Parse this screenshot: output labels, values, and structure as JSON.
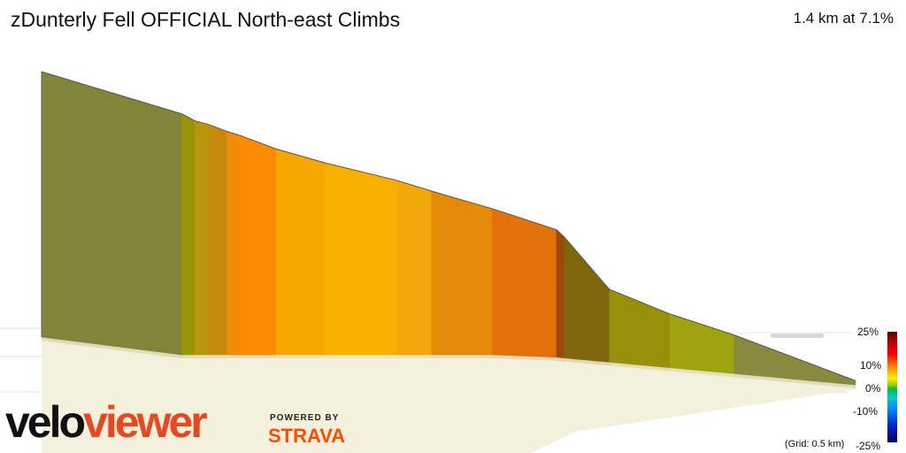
{
  "header": {
    "title": "zDunterly Fell OFFICIAL North-east Climbs",
    "summary": "1.4 km at 7.1%"
  },
  "branding": {
    "logo_part1": "velo",
    "logo_part2": "viewer",
    "powered_by": "POWERED BY",
    "strava": "STRAVA"
  },
  "legend": {
    "grade_labels": [
      "25%",
      "10%",
      "0%",
      "-10%",
      "-25%"
    ],
    "grid_note": "(Grid: 0.5 km)"
  },
  "colors": {
    "accent_orange": "#fc4c02",
    "veloviewer_red": "#e8471f"
  },
  "chart_data": {
    "type": "area",
    "title": "zDunterly Fell OFFICIAL North-east Climbs",
    "xlabel": "",
    "ylabel": "",
    "grid_spacing_km": 0.5,
    "distance_km": 1.4,
    "average_gradient_pct": 7.1,
    "grade_scale_pct": [
      25,
      10,
      0,
      -10,
      -25
    ],
    "segments": [
      {
        "x0": 0.0,
        "x1": 0.37,
        "gradient_pct": 3.5,
        "color": "#808538"
      },
      {
        "x0": 0.37,
        "x1": 0.405,
        "gradient_pct": 5.5,
        "color": "#99940a"
      },
      {
        "x0": 0.405,
        "x1": 0.44,
        "gradient_pct": 6.0,
        "color": "#b8960a"
      },
      {
        "x0": 0.44,
        "x1": 0.49,
        "gradient_pct": 7.0,
        "color": "#c88a0a"
      },
      {
        "x0": 0.49,
        "x1": 0.52,
        "gradient_pct": 8.5,
        "color": "#f08c05"
      },
      {
        "x0": 0.52,
        "x1": 0.62,
        "gradient_pct": 9.0,
        "color": "#fb8c02"
      },
      {
        "x0": 0.62,
        "x1": 0.75,
        "gradient_pct": 8.0,
        "color": "#f7a800"
      },
      {
        "x0": 0.75,
        "x1": 0.94,
        "gradient_pct": 7.5,
        "color": "#f6b000"
      },
      {
        "x0": 0.94,
        "x1": 1.03,
        "gradient_pct": 8.0,
        "color": "#f1a808"
      },
      {
        "x0": 1.03,
        "x1": 1.19,
        "gradient_pct": 8.5,
        "color": "#e68a0a"
      },
      {
        "x0": 1.19,
        "x1": 1.36,
        "gradient_pct": 9.5,
        "color": "#e4720a"
      },
      {
        "x0": 1.36,
        "x1": 1.38,
        "gradient_pct": 10.5,
        "color": "#9a4a08"
      },
      {
        "x0": 1.38,
        "x1": 1.5,
        "gradient_pct": 6.5,
        "color": "#7e660a"
      },
      {
        "x0": 1.5,
        "x1": 1.66,
        "gradient_pct": 4.5,
        "color": "#99900a"
      },
      {
        "x0": 1.66,
        "x1": 1.83,
        "gradient_pct": 4.0,
        "color": "#9ea30e"
      },
      {
        "x0": 1.83,
        "x1": 2.15,
        "gradient_pct": 2.5,
        "color": "#8a8a3e"
      }
    ],
    "elevation_profile": [
      [
        0.0,
        100
      ],
      [
        0.37,
        88
      ],
      [
        0.405,
        86
      ],
      [
        0.44,
        85
      ],
      [
        0.49,
        83
      ],
      [
        0.52,
        82
      ],
      [
        0.62,
        78
      ],
      [
        0.75,
        74
      ],
      [
        0.94,
        69
      ],
      [
        1.03,
        66
      ],
      [
        1.19,
        61
      ],
      [
        1.36,
        55
      ],
      [
        1.38,
        53
      ],
      [
        1.5,
        38
      ],
      [
        1.66,
        31
      ],
      [
        1.83,
        25
      ],
      [
        2.15,
        12
      ]
    ]
  }
}
